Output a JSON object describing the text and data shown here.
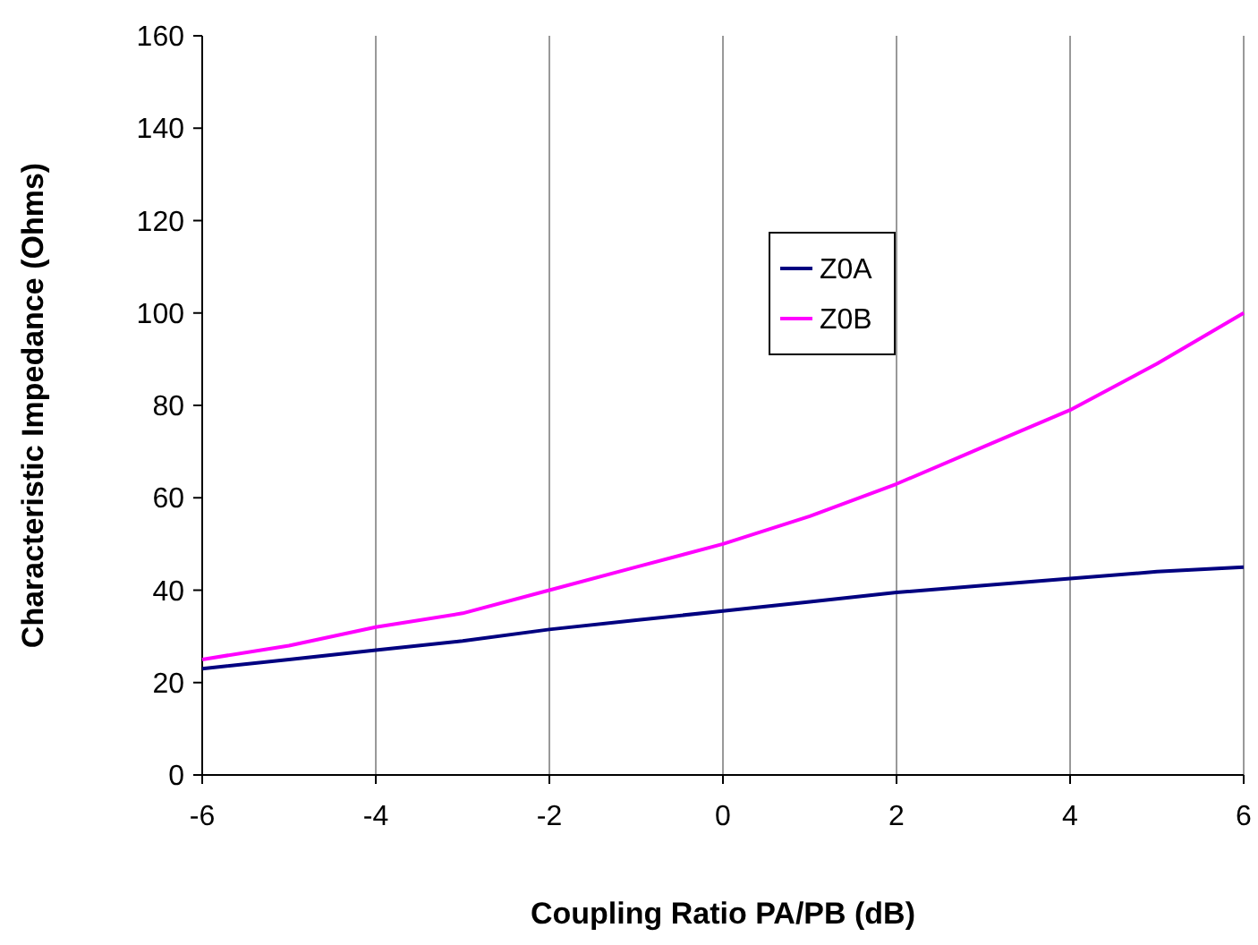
{
  "chart_data": {
    "type": "line",
    "xlabel": "Coupling Ratio PA/PB (dB)",
    "ylabel": "Characteristic Impedance (Ohms)",
    "x": [
      -6,
      -5,
      -4,
      -3,
      -2,
      -1,
      0,
      1,
      2,
      3,
      4,
      5,
      6
    ],
    "series": [
      {
        "name": "Z0A",
        "color": "#000080",
        "values": [
          23,
          25,
          27,
          29,
          31.5,
          33.5,
          35.5,
          37.5,
          39.5,
          41,
          42.5,
          44,
          45
        ]
      },
      {
        "name": "Z0B",
        "color": "#ff00ff",
        "values": [
          25,
          28,
          32,
          35,
          40,
          45,
          50,
          56,
          63,
          71,
          79,
          89,
          100
        ]
      }
    ],
    "xlim": [
      -6,
      6
    ],
    "xticks": [
      -6,
      -4,
      -2,
      0,
      2,
      4,
      6
    ],
    "ylim": [
      0,
      160
    ],
    "yticks": [
      0,
      20,
      40,
      60,
      80,
      100,
      120,
      140,
      160
    ],
    "grid": "x",
    "legend": "top right",
    "marker": "none",
    "line_style": "solid"
  }
}
